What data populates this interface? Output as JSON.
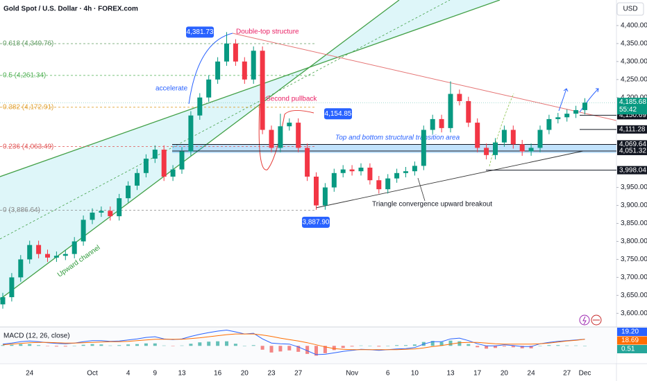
{
  "header": {
    "title": "Gold Spot / U.S. Dollar · 4h · FOREX.com",
    "currency": "USD"
  },
  "chart_data": {
    "type": "candlestick",
    "categories": [
      null,
      null,
      null,
      "24",
      null,
      null,
      null,
      null,
      null,
      null,
      "Oct",
      null,
      null,
      null,
      "4",
      null,
      null,
      "9",
      null,
      null,
      "13",
      null,
      null,
      null,
      "16",
      null,
      null,
      "20",
      null,
      null,
      "23",
      null,
      null,
      "27",
      null,
      null,
      null,
      null,
      null,
      "Nov",
      null,
      null,
      null,
      "6",
      null,
      null,
      "10",
      null,
      null,
      null,
      "13",
      null,
      null,
      "17",
      null,
      null,
      "20",
      null,
      null,
      "24",
      null,
      null,
      null,
      "27",
      null,
      "Dec"
    ],
    "open": [
      3625,
      3645,
      3700,
      3750,
      3790,
      3765,
      3755,
      3760,
      3765,
      3800,
      3860,
      3880,
      3885,
      3870,
      3920,
      3955,
      3990,
      4030,
      4055,
      3980,
      4000,
      4050,
      4150,
      4200,
      4250,
      4300,
      4350,
      4300,
      4250,
      4330,
      4110,
      4060,
      4120,
      4130,
      4060,
      3980,
      3900,
      3950,
      3990,
      4000,
      3995,
      4005,
      3970,
      3945,
      3975,
      3990,
      3995,
      4010,
      4110,
      4140,
      4115,
      4210,
      4190,
      4130,
      4060,
      4040,
      4075,
      4110,
      4070,
      4050,
      4060,
      4110,
      4140,
      4145,
      4155,
      4165
    ],
    "high": [
      3657,
      3712,
      3762,
      3802,
      3802,
      3777,
      3772,
      3777,
      3812,
      3872,
      3892,
      3897,
      3897,
      3932,
      3967,
      4002,
      4042,
      4067,
      4067,
      4012,
      4062,
      4162,
      4212,
      4262,
      4312,
      4381.73,
      4362,
      4312,
      4342,
      4342,
      4122,
      4154.85,
      4142,
      4142,
      4072,
      3992,
      3962,
      4002,
      4012,
      4012,
      4017,
      4017,
      3982,
      3987,
      4002,
      4007,
      4022,
      4122,
      4152,
      4152,
      4245,
      4222,
      4202,
      4142,
      4072,
      4087,
      4122,
      4122,
      4082,
      4072,
      4122,
      4152,
      4157,
      4167,
      4177,
      4198
    ],
    "low": [
      3613,
      3633,
      3688,
      3738,
      3753,
      3743,
      3743,
      3748,
      3753,
      3788,
      3848,
      3868,
      3858,
      3858,
      3908,
      3943,
      3978,
      4018,
      3968,
      3968,
      3988,
      4038,
      4138,
      4188,
      4238,
      4288,
      4288,
      4238,
      4238,
      4098,
      4048,
      4048,
      4108,
      4048,
      3968,
      3887.9,
      3888,
      3938,
      3978,
      3983,
      3983,
      3958,
      3933,
      3933,
      3963,
      3978,
      3983,
      3998,
      4098,
      4103,
      4103,
      4178,
      4118,
      4048,
      4028,
      4028,
      4063,
      4058,
      4038,
      4038,
      4048,
      4098,
      4128,
      4133,
      4143,
      4153
    ],
    "close": [
      3645,
      3700,
      3750,
      3790,
      3765,
      3755,
      3760,
      3765,
      3800,
      3860,
      3880,
      3885,
      3870,
      3920,
      3955,
      3990,
      4030,
      4055,
      3980,
      4000,
      4050,
      4150,
      4200,
      4250,
      4300,
      4350,
      4300,
      4250,
      4330,
      4110,
      4060,
      4120,
      4130,
      4060,
      3980,
      3900,
      3950,
      3990,
      4000,
      3995,
      4005,
      3970,
      3945,
      3975,
      3990,
      3995,
      4010,
      4110,
      4140,
      4115,
      4210,
      4190,
      4130,
      4060,
      4040,
      4075,
      4110,
      4070,
      4050,
      4060,
      4110,
      4140,
      4145,
      4155,
      4165,
      4185.68
    ],
    "up_color": "#089981",
    "down_color": "#f23645",
    "ylim": [
      3566,
      4471
    ],
    "yticks": [
      {
        "value": 4400,
        "label": "4,400.00"
      },
      {
        "value": 4350,
        "label": "4,350.00"
      },
      {
        "value": 4300,
        "label": "4,300.00"
      },
      {
        "value": 4250,
        "label": "4,250.00"
      },
      {
        "value": 4200,
        "label": "4,200.00"
      },
      {
        "value": 3950,
        "label": "3,950.00"
      },
      {
        "value": 3900,
        "label": "3,900.00"
      },
      {
        "value": 3850,
        "label": "3,850.00"
      },
      {
        "value": 3800,
        "label": "3,800.00"
      },
      {
        "value": 3750,
        "label": "3,750.00"
      },
      {
        "value": 3700,
        "label": "3,700.00"
      },
      {
        "value": 3650,
        "label": "3,650.00"
      },
      {
        "value": 3600,
        "label": "3,600.00"
      }
    ],
    "current_price": {
      "value": 4185.68,
      "label": "4,185.68",
      "countdown": "55:42",
      "color": "#089981"
    },
    "levels": [
      {
        "value": 4150.69,
        "label": "4,150.69"
      },
      {
        "value": 4111.28,
        "label": "4,111.28"
      },
      {
        "value": 4069.64,
        "label": "4,069.64"
      },
      {
        "value": 4051.32,
        "label": "4,051.32"
      },
      {
        "value": 3998.04,
        "label": "3,998.04"
      }
    ],
    "callouts": [
      {
        "value": 4381.73,
        "label": "4,381.73"
      },
      {
        "value": 4154.85,
        "label": "4,154.85"
      },
      {
        "value": 3887.9,
        "label": "3,887.90"
      }
    ],
    "fib_levels": [
      {
        "value": 4349.76,
        "label": "0.618 (4,349.76)",
        "color": "#5d9a5f"
      },
      {
        "value": 4261.34,
        "label": "0.5 (4,261.34)",
        "color": "#4caf50"
      },
      {
        "value": 4172.91,
        "label": "0.382 (4,172.91)",
        "color": "#e0a030"
      },
      {
        "value": 4063.49,
        "label": "0.236 (4,063.49)",
        "color": "#e05050"
      },
      {
        "value": 3886.64,
        "label": "0 (3,886.64)",
        "color": "#888888"
      }
    ],
    "annotations": {
      "double_top": "Double-top structure",
      "accelerate": "accelerate",
      "pullback": "Second pullback",
      "zone": "Top and bottom structural transition area",
      "triangle": "Triangle convergence upward breakout",
      "channel": "Upward channel"
    },
    "macd": {
      "title": "MACD (12, 26, close)",
      "ylim": [
        -45,
        50
      ],
      "series": [
        {
          "color": "#2962ff",
          "values": [
            5,
            8,
            12,
            14,
            12,
            9,
            7,
            6,
            8,
            12,
            15,
            15,
            13,
            14,
            17,
            20,
            24,
            26,
            20,
            18,
            20,
            27,
            33,
            38,
            42,
            45,
            40,
            34,
            36,
            20,
            8,
            6,
            5,
            -3,
            -14,
            -25,
            -24,
            -20,
            -16,
            -13,
            -10,
            -11,
            -13,
            -11,
            -9,
            -8,
            -5,
            5,
            12,
            12,
            20,
            22,
            15,
            6,
            0,
            0,
            3,
            1,
            -2,
            -2,
            6,
            10,
            13,
            15,
            17,
            19.2
          ]
        },
        {
          "color": "#ff6d00",
          "values": [
            3,
            5,
            7,
            9,
            10,
            10,
            9,
            8,
            8,
            9,
            10,
            11,
            12,
            12,
            13,
            15,
            17,
            19,
            19,
            19,
            19,
            21,
            23,
            26,
            29,
            32,
            34,
            34,
            34,
            31,
            27,
            22,
            18,
            14,
            9,
            3,
            -3,
            -8,
            -10,
            -11,
            -11,
            -11,
            -11,
            -11,
            -11,
            -10,
            -9,
            -6,
            -2,
            1,
            5,
            9,
            10,
            10,
            8,
            6,
            5,
            5,
            5,
            5,
            6,
            8,
            11,
            14,
            16,
            18.69
          ]
        }
      ],
      "histogram": {
        "up_color": "#26a69a",
        "down_color": "#ef5350",
        "values": [
          2,
          3,
          5,
          5,
          2,
          -1,
          -2,
          -2,
          0,
          3,
          5,
          4,
          1,
          2,
          4,
          5,
          7,
          7,
          1,
          -1,
          1,
          6,
          10,
          12,
          13,
          13,
          6,
          0,
          2,
          -11,
          -19,
          -16,
          -13,
          -17,
          -23,
          -28,
          -21,
          -12,
          -6,
          -2,
          1,
          0,
          -2,
          0,
          2,
          2,
          4,
          11,
          14,
          11,
          15,
          13,
          5,
          -4,
          -8,
          -6,
          -2,
          -4,
          -7,
          -7,
          0,
          2,
          2,
          1,
          1,
          0.51
        ]
      },
      "last_labels": [
        {
          "value": 19.2,
          "label": "19.20",
          "color": "#2962ff"
        },
        {
          "value": 18.69,
          "label": "18.69",
          "color": "#ff6d00"
        },
        {
          "value": 0.51,
          "label": "0.51",
          "color": "#26a69a"
        }
      ]
    }
  }
}
